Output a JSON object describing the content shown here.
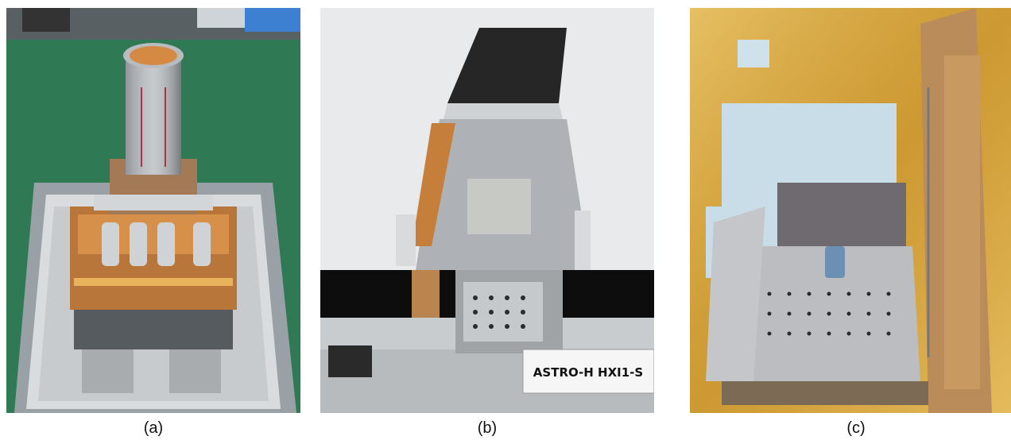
{
  "figure": {
    "panels": [
      {
        "id": "a",
        "caption": "(a)",
        "subject": "detector-hardware-on-cleanroom-cart"
      },
      {
        "id": "b",
        "caption": "(b)",
        "subject": "hxi-sensor-unit",
        "placard": "ASTRO-H    HXI1-S"
      },
      {
        "id": "c",
        "caption": "(c)",
        "subject": "instrument-on-satellite-panel"
      }
    ]
  },
  "colors": {
    "floor_green": "#2f7a55",
    "copper": "#c8782a",
    "aluminum": "#b9bcc0",
    "mli_gold": "#d9a53a",
    "backdrop_white": "#e9eaec",
    "black_band": "#0d0d0d"
  }
}
